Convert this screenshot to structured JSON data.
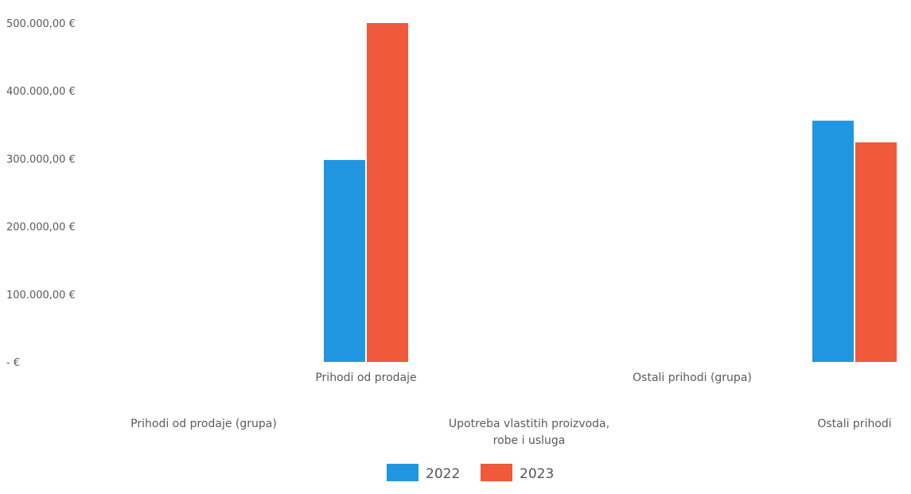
{
  "chart_data": {
    "type": "bar",
    "ylim": [
      0,
      500000
    ],
    "y_ticks": [
      {
        "value": 500000,
        "label": "500.000,00 €"
      },
      {
        "value": 400000,
        "label": "400.000,00 €"
      },
      {
        "value": 300000,
        "label": "300.000,00 €"
      },
      {
        "value": 200000,
        "label": "200.000,00 €"
      },
      {
        "value": 100000,
        "label": "100.000,00 €"
      },
      {
        "value": 0,
        "label": "-  €"
      }
    ],
    "categories": [
      {
        "label": [
          "Prihodi od prodaje (grupa)"
        ],
        "row": 2
      },
      {
        "label": [
          "Prihodi od prodaje"
        ],
        "row": 1
      },
      {
        "label": [
          "Upotreba vlastitih proizvoda,",
          "robe i usluga"
        ],
        "row": 2
      },
      {
        "label": [
          "Ostali prihodi (grupa)"
        ],
        "row": 1
      },
      {
        "label": [
          "Ostali prihodi"
        ],
        "row": 2
      }
    ],
    "series": [
      {
        "name": "2022",
        "color": "#2196e0",
        "values": [
          null,
          298000,
          null,
          null,
          356000
        ]
      },
      {
        "name": "2023",
        "color": "#f0593b",
        "values": [
          null,
          500000,
          null,
          null,
          324000
        ]
      }
    ],
    "legend_position": "bottom",
    "grid": false
  }
}
